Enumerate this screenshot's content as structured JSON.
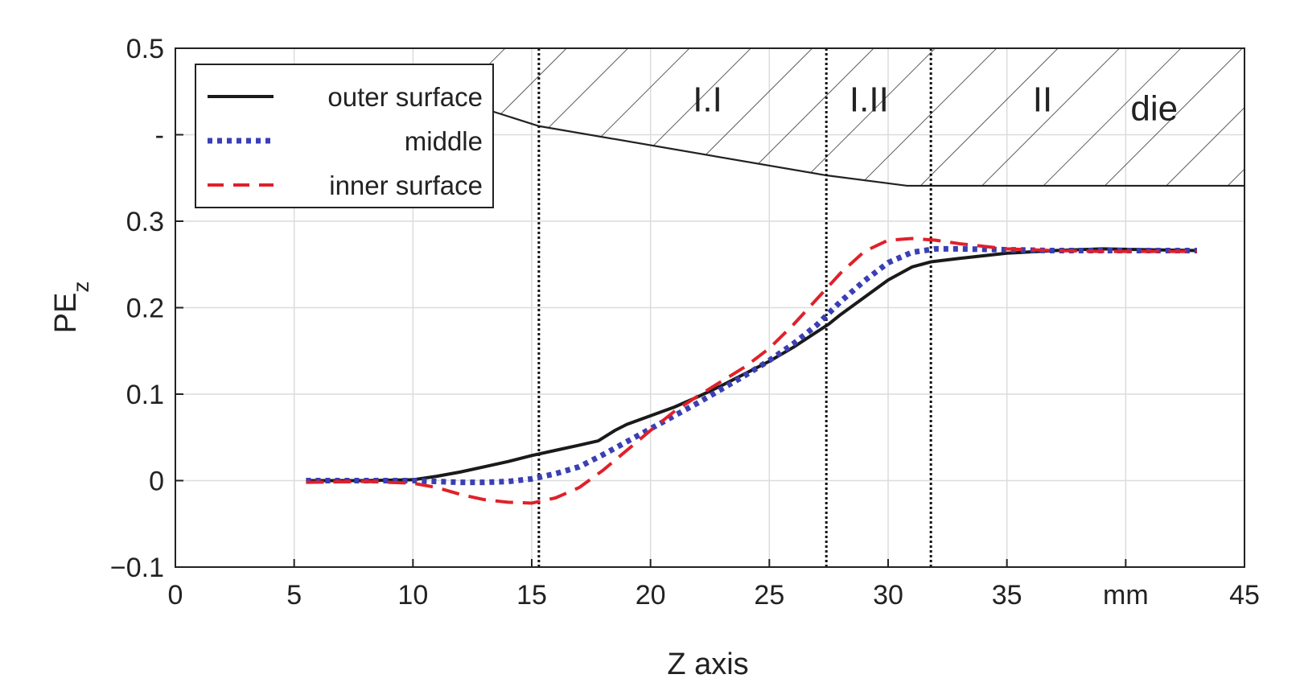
{
  "chart_data": {
    "type": "line",
    "title": "",
    "xlabel": "Z axis",
    "ylabel": "PE",
    "ylabel_subscript": "z",
    "xlim": [
      0,
      45
    ],
    "ylim": [
      -0.1,
      0.5
    ],
    "grid": true,
    "x_ticks": [
      0,
      5,
      10,
      15,
      20,
      25,
      30,
      35,
      40,
      45
    ],
    "x_tick_labels": [
      "0",
      "5",
      "10",
      "15",
      "20",
      "25",
      "30",
      "35",
      "mm",
      "45"
    ],
    "y_ticks": [
      -0.1,
      0,
      0.1,
      0.2,
      0.3,
      0.4,
      0.5
    ],
    "y_tick_labels": [
      "−0.1",
      "0",
      "0.1",
      "0.2",
      "0.3",
      "-",
      "0.5"
    ],
    "legend_position": "top-left",
    "series": [
      {
        "name": "outer surface",
        "color": "#1a1a1a",
        "style": "solid",
        "x": [
          5.5,
          8,
          10,
          11,
          12,
          13,
          14,
          15,
          16,
          17,
          17.8,
          18.5,
          19,
          20,
          21,
          22,
          23,
          24,
          25,
          26,
          27,
          27.5,
          28,
          29,
          30,
          31,
          31.8,
          33,
          35,
          37,
          39,
          41,
          43
        ],
        "y": [
          0,
          0,
          0.001,
          0.005,
          0.01,
          0.016,
          0.022,
          0.029,
          0.035,
          0.041,
          0.046,
          0.058,
          0.065,
          0.075,
          0.085,
          0.097,
          0.11,
          0.124,
          0.138,
          0.154,
          0.172,
          0.181,
          0.192,
          0.212,
          0.232,
          0.247,
          0.253,
          0.257,
          0.263,
          0.266,
          0.268,
          0.267,
          0.266
        ]
      },
      {
        "name": "middle",
        "color": "#3a3fb5",
        "style": "dotted",
        "x": [
          5.5,
          8,
          10,
          11,
          12,
          13,
          14,
          15,
          16,
          17,
          18,
          19,
          20,
          21,
          22,
          23,
          24,
          25,
          26,
          27,
          28,
          29,
          30,
          31,
          32,
          33,
          35,
          37,
          39,
          41,
          43
        ],
        "y": [
          0,
          0,
          0,
          -0.001,
          -0.002,
          -0.002,
          -0.001,
          0.002,
          0.008,
          0.016,
          0.03,
          0.045,
          0.06,
          0.075,
          0.09,
          0.106,
          0.122,
          0.139,
          0.158,
          0.18,
          0.207,
          0.231,
          0.252,
          0.264,
          0.268,
          0.268,
          0.267,
          0.266,
          0.266,
          0.266,
          0.266
        ]
      },
      {
        "name": "inner surface",
        "color": "#e0202a",
        "style": "dashed",
        "x": [
          5.5,
          8,
          10,
          11,
          12,
          13,
          14,
          15,
          16,
          17,
          18,
          19,
          20,
          21,
          22,
          23,
          24,
          25,
          26,
          27,
          28,
          29,
          30,
          31,
          32,
          33,
          35,
          37,
          39,
          41,
          43
        ],
        "y": [
          -0.002,
          -0.001,
          -0.003,
          -0.008,
          -0.016,
          -0.022,
          -0.025,
          -0.026,
          -0.02,
          -0.008,
          0.012,
          0.035,
          0.058,
          0.08,
          0.098,
          0.115,
          0.132,
          0.153,
          0.18,
          0.21,
          0.24,
          0.265,
          0.278,
          0.28,
          0.278,
          0.274,
          0.268,
          0.266,
          0.265,
          0.265,
          0.265
        ]
      }
    ],
    "vertical_lines": [
      15.3,
      27.4,
      31.8
    ],
    "die_profile": {
      "x": [
        13,
        15.3,
        27.4,
        30.8,
        45
      ],
      "y": [
        0.43,
        0.41,
        0.353,
        0.341,
        0.341
      ]
    },
    "region_labels": [
      {
        "text": "I.I",
        "x": 22.4,
        "y": 0.44
      },
      {
        "text": "I.II",
        "x": 29.2,
        "y": 0.44
      },
      {
        "text": "II",
        "x": 36.5,
        "y": 0.44
      },
      {
        "text": "die",
        "x": 41.2,
        "y": 0.43
      }
    ]
  }
}
